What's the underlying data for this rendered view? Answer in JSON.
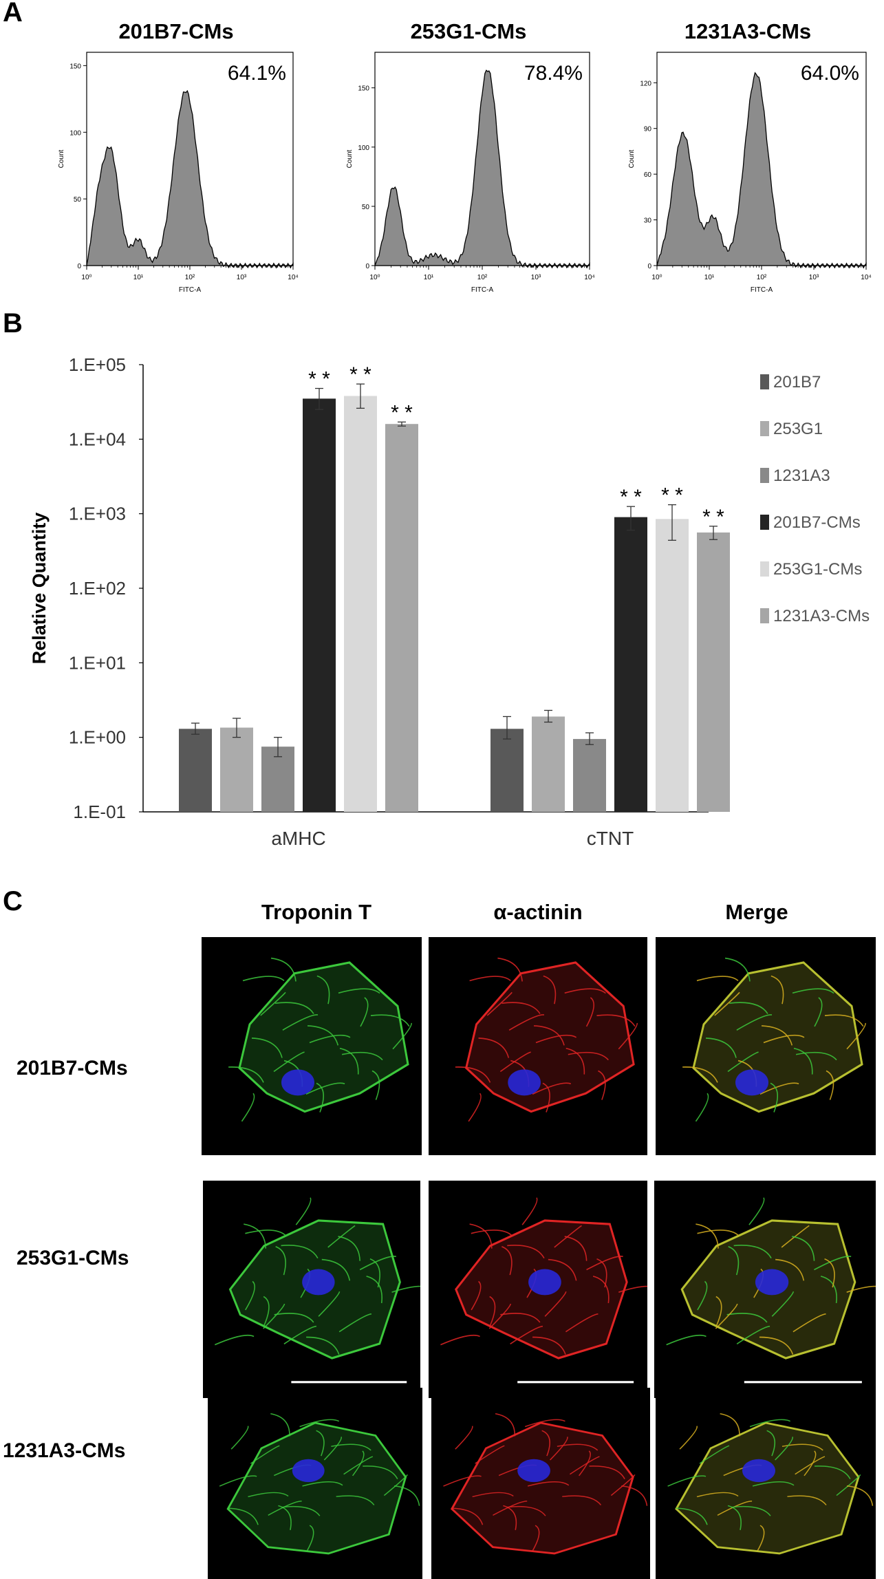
{
  "panel_a": {
    "letter": "A",
    "histograms": [
      {
        "title": "201B7-CMs",
        "percent": "64.1%",
        "ylabel": "Count",
        "xlabel": "FITC-A",
        "yticks": [
          {
            "v": 0,
            "t": "0"
          },
          {
            "v": 50,
            "t": "50"
          },
          {
            "v": 100,
            "t": "100"
          },
          {
            "v": 150,
            "t": "150"
          }
        ],
        "ymax": 160,
        "xticks": [
          "10⁰",
          "10¹",
          "10²",
          "10³",
          "10⁴"
        ]
      },
      {
        "title": "253G1-CMs",
        "percent": "78.4%",
        "ylabel": "Count",
        "xlabel": "FITC-A",
        "yticks": [
          {
            "v": 0,
            "t": "0"
          },
          {
            "v": 50,
            "t": "50"
          },
          {
            "v": 100,
            "t": "100"
          },
          {
            "v": 150,
            "t": "150"
          }
        ],
        "ymax": 180,
        "xticks": [
          "10⁰",
          "10¹",
          "10²",
          "10³",
          "10⁴"
        ]
      },
      {
        "title": "1231A3-CMs",
        "percent": "64.0%",
        "ylabel": "Count",
        "xlabel": "FITC-A",
        "yticks": [
          {
            "v": 0,
            "t": "0"
          },
          {
            "v": 30,
            "t": "30"
          },
          {
            "v": 60,
            "t": "60"
          },
          {
            "v": 90,
            "t": "90"
          },
          {
            "v": 120,
            "t": "120"
          }
        ],
        "ymax": 140,
        "xticks": [
          "10⁰",
          "10¹",
          "10²",
          "10³",
          "10⁴"
        ]
      }
    ]
  },
  "panel_b": {
    "letter": "B",
    "ylabel": "Relative Quantity",
    "yticks": [
      "1.E-01",
      "1.E+00",
      "1.E+01",
      "1.E+02",
      "1.E+03",
      "1.E+04",
      "1.E+05"
    ],
    "significance_mark": "* *"
  },
  "chart_data": {
    "type": "bar",
    "scale": "log",
    "ylim": [
      0.1,
      100000
    ],
    "ylabel": "Relative Quantity",
    "categories": [
      "aMHC",
      "cTNT"
    ],
    "series": [
      {
        "name": "201B7",
        "color": "#595959",
        "values": [
          1.3,
          1.3
        ],
        "err_low": [
          1.1,
          0.95
        ],
        "err_high": [
          1.55,
          1.9
        ],
        "sig": [
          false,
          false
        ]
      },
      {
        "name": "253G1",
        "color": "#ababab",
        "values": [
          1.35,
          1.9
        ],
        "err_low": [
          1.0,
          1.6
        ],
        "err_high": [
          1.8,
          2.3
        ],
        "sig": [
          false,
          false
        ]
      },
      {
        "name": "1231A3",
        "color": "#898989",
        "values": [
          0.75,
          0.95
        ],
        "err_low": [
          0.55,
          0.8
        ],
        "err_high": [
          1.0,
          1.15
        ],
        "sig": [
          false,
          false
        ]
      },
      {
        "name": "201B7-CMs",
        "color": "#242424",
        "values": [
          35000,
          900
        ],
        "err_low": [
          25000,
          600
        ],
        "err_high": [
          48000,
          1250
        ],
        "sig": [
          true,
          true
        ]
      },
      {
        "name": "253G1-CMs",
        "color": "#d9d9d9",
        "values": [
          38000,
          850
        ],
        "err_low": [
          26000,
          440
        ],
        "err_high": [
          55000,
          1320
        ],
        "sig": [
          true,
          true
        ]
      },
      {
        "name": "1231A3-CMs",
        "color": "#a6a6a6",
        "values": [
          16000,
          560
        ],
        "err_low": [
          15000,
          450
        ],
        "err_high": [
          17000,
          680
        ],
        "sig": [
          true,
          true
        ]
      }
    ],
    "legend_position": "right"
  },
  "panel_c": {
    "letter": "C",
    "columns": [
      "Troponin T",
      "α-actinin",
      "Merge"
    ],
    "rows": [
      "201B7-CMs",
      "253G1-CMs",
      "1231A3-CMs"
    ],
    "colors": {
      "green": "#3cc83c",
      "red": "#e02424",
      "merge": "#b8c030",
      "nucleus": "#2828d8"
    }
  }
}
